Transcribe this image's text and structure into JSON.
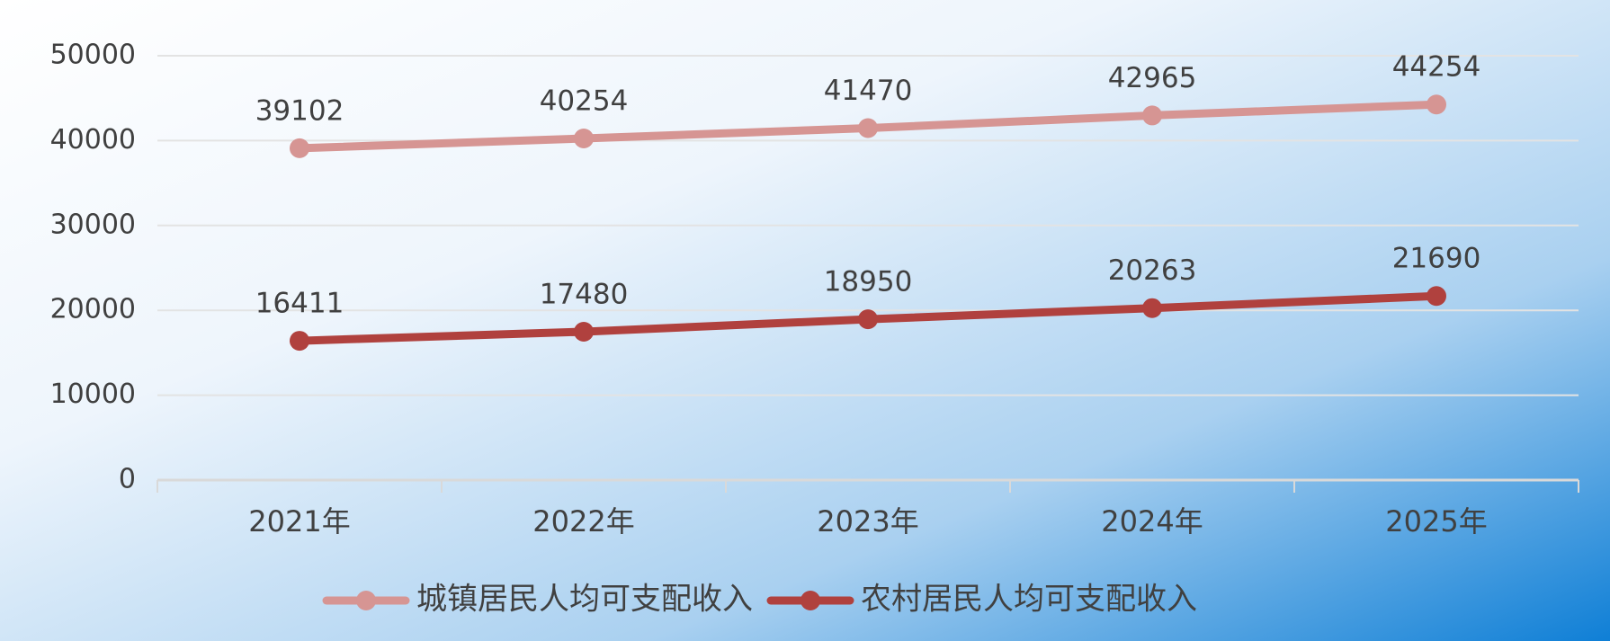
{
  "chart_data": {
    "type": "line",
    "categories": [
      "2021年",
      "2022年",
      "2023年",
      "2024年",
      "2025年"
    ],
    "series": [
      {
        "name": "城镇居民人均可支配收入",
        "color": "#d69593",
        "values": [
          39102,
          40254,
          41470,
          42965,
          44254
        ]
      },
      {
        "name": "农村居民人均可支配收入",
        "color": "#b0413e",
        "values": [
          16411,
          17480,
          18950,
          20263,
          21690
        ]
      }
    ],
    "ylim": [
      0,
      50000
    ],
    "yticks": [
      0,
      10000,
      20000,
      30000,
      40000,
      50000
    ],
    "grid": true
  }
}
